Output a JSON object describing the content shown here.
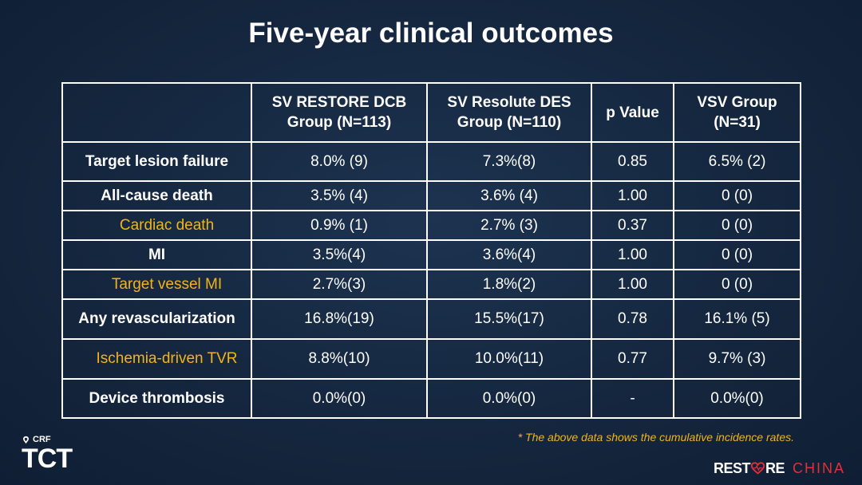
{
  "title": "Five-year clinical outcomes",
  "table": {
    "headers": [
      {
        "line1": "",
        "line2": ""
      },
      {
        "line1": "SV RESTORE DCB",
        "line2": "Group (N=113)"
      },
      {
        "line1": "SV Resolute DES",
        "line2": "Group (N=110)"
      },
      {
        "line1": "p Value",
        "line2": ""
      },
      {
        "line1": "VSV Group",
        "line2": "(N=31)"
      }
    ],
    "rows": [
      {
        "label": "Target lesion failure",
        "dcb": "8.0% (9)",
        "des": "7.3%(8)",
        "p": "0.85",
        "vsv": "6.5% (2)"
      },
      {
        "label": "All-cause death",
        "dcb": "3.5% (4)",
        "des": "3.6% (4)",
        "p": "1.00",
        "vsv": "0 (0)"
      },
      {
        "label": "Cardiac death",
        "dcb": "0.9% (1)",
        "des": "2.7% (3)",
        "p": "0.37",
        "vsv": "0 (0)"
      },
      {
        "label": "MI",
        "dcb": "3.5%(4)",
        "des": "3.6%(4)",
        "p": "1.00",
        "vsv": "0 (0)"
      },
      {
        "label": "Target vessel MI",
        "dcb": "2.7%(3)",
        "des": "1.8%(2)",
        "p": "1.00",
        "vsv": "0 (0)"
      },
      {
        "label": "Any revascularization",
        "dcb": "16.8%(19)",
        "des": "15.5%(17)",
        "p": "0.78",
        "vsv": "16.1% (5)"
      },
      {
        "label": "Ischemia-driven TVR",
        "dcb": "8.8%(10)",
        "des": "10.0%(11)",
        "p": "0.77",
        "vsv": "9.7% (3)"
      },
      {
        "label": "Device thrombosis",
        "dcb": "0.0%(0)",
        "des": "0.0%(0)",
        "p": "-",
        "vsv": "0.0%(0)"
      }
    ]
  },
  "footnote": "* The above data shows the cumulative incidence rates.",
  "logos": {
    "crf": "CRF",
    "tct": "TCT",
    "restore_part1": "REST",
    "restore_part2": "RE",
    "china": "CHINA"
  },
  "colors": {
    "background": "#15273f",
    "subrow_text": "#f3b41b",
    "footnote": "#f3b41b",
    "china_red": "#e0303a",
    "border": "#ffffff"
  },
  "icons": {
    "crf_mark": "crf-swirl-icon",
    "restore_heart": "heart-icon"
  }
}
